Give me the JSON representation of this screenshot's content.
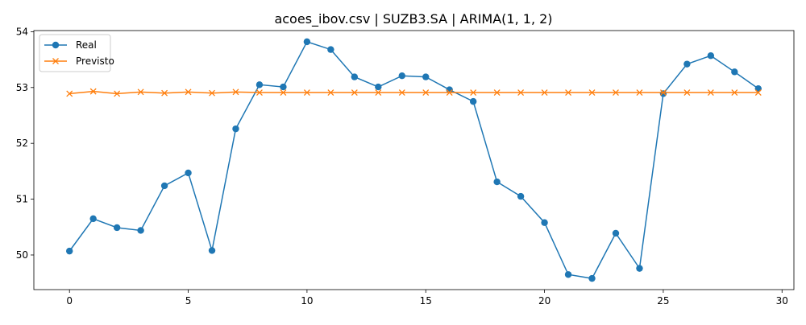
{
  "chart_data": {
    "type": "line",
    "title": "acoes_ibov.csv | SUZB3.SA | ARIMA(1, 1, 2)",
    "xlabel": "",
    "ylabel": "",
    "xlim": [
      -1.5,
      30.5
    ],
    "ylim": [
      49.38,
      54.02
    ],
    "x_ticks": [
      0,
      5,
      10,
      15,
      20,
      25,
      30
    ],
    "y_ticks": [
      50,
      51,
      52,
      53,
      54
    ],
    "grid": false,
    "legend_position": "upper left",
    "x": [
      0,
      1,
      2,
      3,
      4,
      5,
      6,
      7,
      8,
      9,
      10,
      11,
      12,
      13,
      14,
      15,
      16,
      17,
      18,
      19,
      20,
      21,
      22,
      23,
      24,
      25,
      26,
      27,
      28,
      29
    ],
    "series": [
      {
        "name": "Real",
        "color": "#1f77b4",
        "marker": "circle",
        "values": [
          50.07,
          50.65,
          50.49,
          50.44,
          51.24,
          51.47,
          50.08,
          52.26,
          53.05,
          53.01,
          53.82,
          53.68,
          53.19,
          53.01,
          53.21,
          53.19,
          52.96,
          52.75,
          51.31,
          51.05,
          50.58,
          49.65,
          49.58,
          50.39,
          49.76,
          52.89,
          53.42,
          53.57,
          53.28,
          52.98
        ]
      },
      {
        "name": "Previsto",
        "color": "#ff7f0e",
        "marker": "x",
        "values": [
          52.89,
          52.93,
          52.89,
          52.92,
          52.9,
          52.92,
          52.9,
          52.92,
          52.91,
          52.91,
          52.91,
          52.91,
          52.91,
          52.91,
          52.91,
          52.91,
          52.91,
          52.91,
          52.91,
          52.91,
          52.91,
          52.91,
          52.91,
          52.91,
          52.91,
          52.91,
          52.91,
          52.91,
          52.91,
          52.91
        ]
      }
    ]
  }
}
